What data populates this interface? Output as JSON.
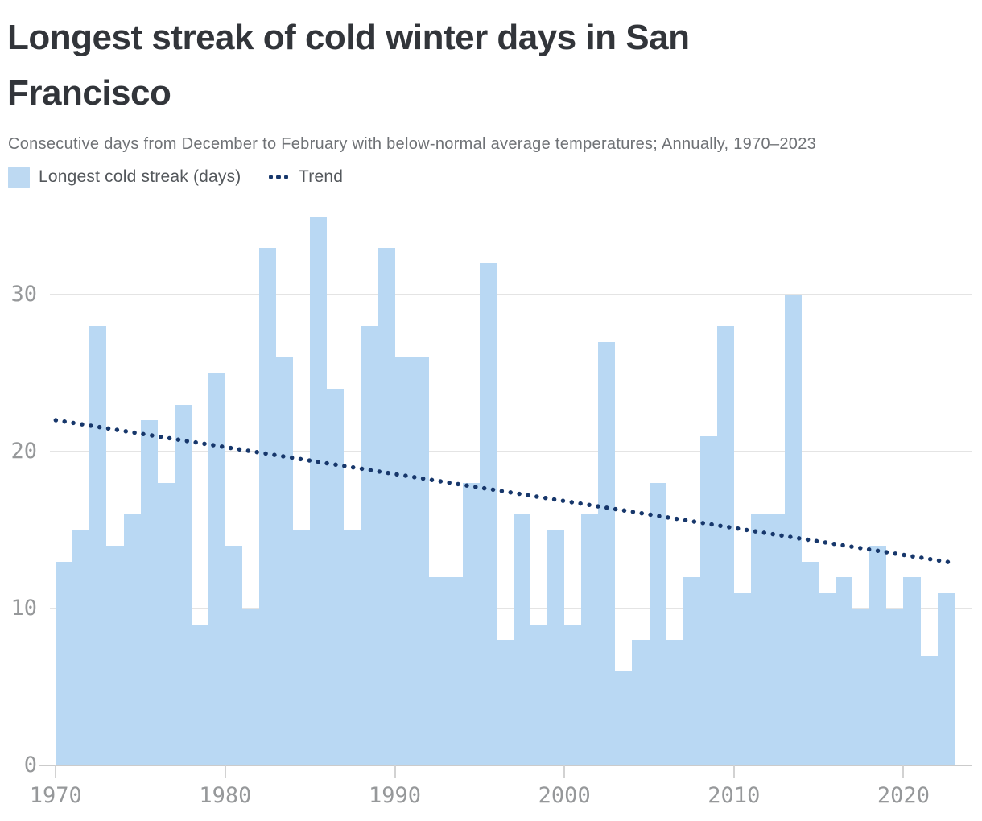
{
  "header": {
    "title_line1": "Longest streak of cold winter days in San",
    "title_line2": "Francisco",
    "subtitle": "Consecutive days from December to February with below-normal average temperatures; Annually, 1970–2023"
  },
  "legend": {
    "series_label": "Longest cold streak (days)",
    "trend_label": "Trend"
  },
  "colors": {
    "bar": "#b9d8f3",
    "legend_swatch": "#bdd9f2",
    "trend": "#17376b",
    "gridline": "#e4e4e4",
    "baseline": "#cbcbcb",
    "axis_label": "#96989a",
    "title_text": "#32353a",
    "subtitle_text": "#6f7276"
  },
  "chart_data": {
    "type": "bar",
    "title": "Longest streak of cold winter days in San Francisco",
    "subtitle": "Consecutive days from December to February with below-normal average temperatures; Annually, 1970–2023",
    "xlabel": "",
    "ylabel": "Longest cold streak (days)",
    "grid": "horizontal",
    "legend_position": "top-left",
    "legend": [
      "Longest cold streak (days)",
      "Trend"
    ],
    "ylim": [
      0,
      36
    ],
    "y_ticks": [
      0,
      10,
      20,
      30
    ],
    "x_ticks": [
      1970,
      1980,
      1990,
      2000,
      2010,
      2020
    ],
    "years": [
      1970,
      1971,
      1972,
      1973,
      1974,
      1975,
      1976,
      1977,
      1978,
      1979,
      1980,
      1981,
      1982,
      1983,
      1984,
      1985,
      1986,
      1987,
      1988,
      1989,
      1990,
      1991,
      1992,
      1993,
      1994,
      1995,
      1996,
      1997,
      1998,
      1999,
      2000,
      2001,
      2002,
      2003,
      2004,
      2005,
      2006,
      2007,
      2008,
      2009,
      2010,
      2011,
      2012,
      2013,
      2014,
      2015,
      2016,
      2017,
      2018,
      2019,
      2020,
      2021,
      2022
    ],
    "values": [
      13,
      15,
      28,
      14,
      16,
      22,
      18,
      23,
      9,
      25,
      14,
      10,
      33,
      26,
      15,
      35,
      24,
      15,
      28,
      33,
      26,
      26,
      12,
      12,
      18,
      32,
      8,
      16,
      9,
      15,
      9,
      16,
      27,
      6,
      8,
      18,
      8,
      12,
      21,
      28,
      11,
      16,
      16,
      30,
      13,
      11,
      12,
      10,
      14,
      10,
      12,
      7,
      11
    ],
    "trend": {
      "type": "linear-dotted",
      "start_year": 1970,
      "start_value": 22.0,
      "end_year": 2023,
      "end_value": 12.9
    }
  }
}
